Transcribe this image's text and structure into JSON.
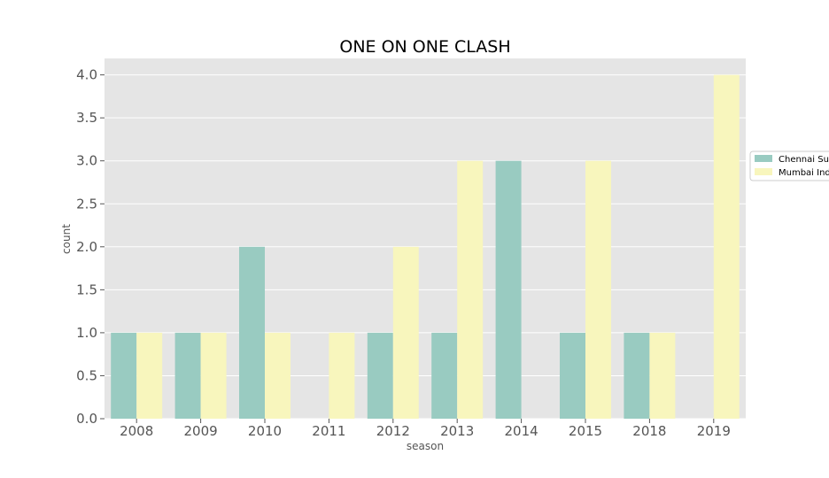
{
  "chart_data": {
    "type": "bar",
    "title": "ONE ON ONE CLASH",
    "xlabel": "season",
    "ylabel": "count",
    "categories": [
      "2008",
      "2009",
      "2010",
      "2011",
      "2012",
      "2013",
      "2014",
      "2015",
      "2018",
      "2019"
    ],
    "series": [
      {
        "name": "Chennai Su",
        "color": "#99cbc1",
        "values": [
          1,
          1,
          2,
          0,
          1,
          1,
          3,
          1,
          1,
          0
        ]
      },
      {
        "name": "Mumbai Ind",
        "color": "#f8f6bd",
        "values": [
          1,
          1,
          1,
          1,
          2,
          3,
          0,
          3,
          1,
          4
        ]
      }
    ],
    "ylim": [
      0,
      4.2
    ],
    "yticks": [
      "0.0",
      "0.5",
      "1.0",
      "1.5",
      "2.0",
      "2.5",
      "3.0",
      "3.5",
      "4.0"
    ],
    "grid": true,
    "legend_position": "right",
    "plot_background": "#e5e5e5"
  }
}
